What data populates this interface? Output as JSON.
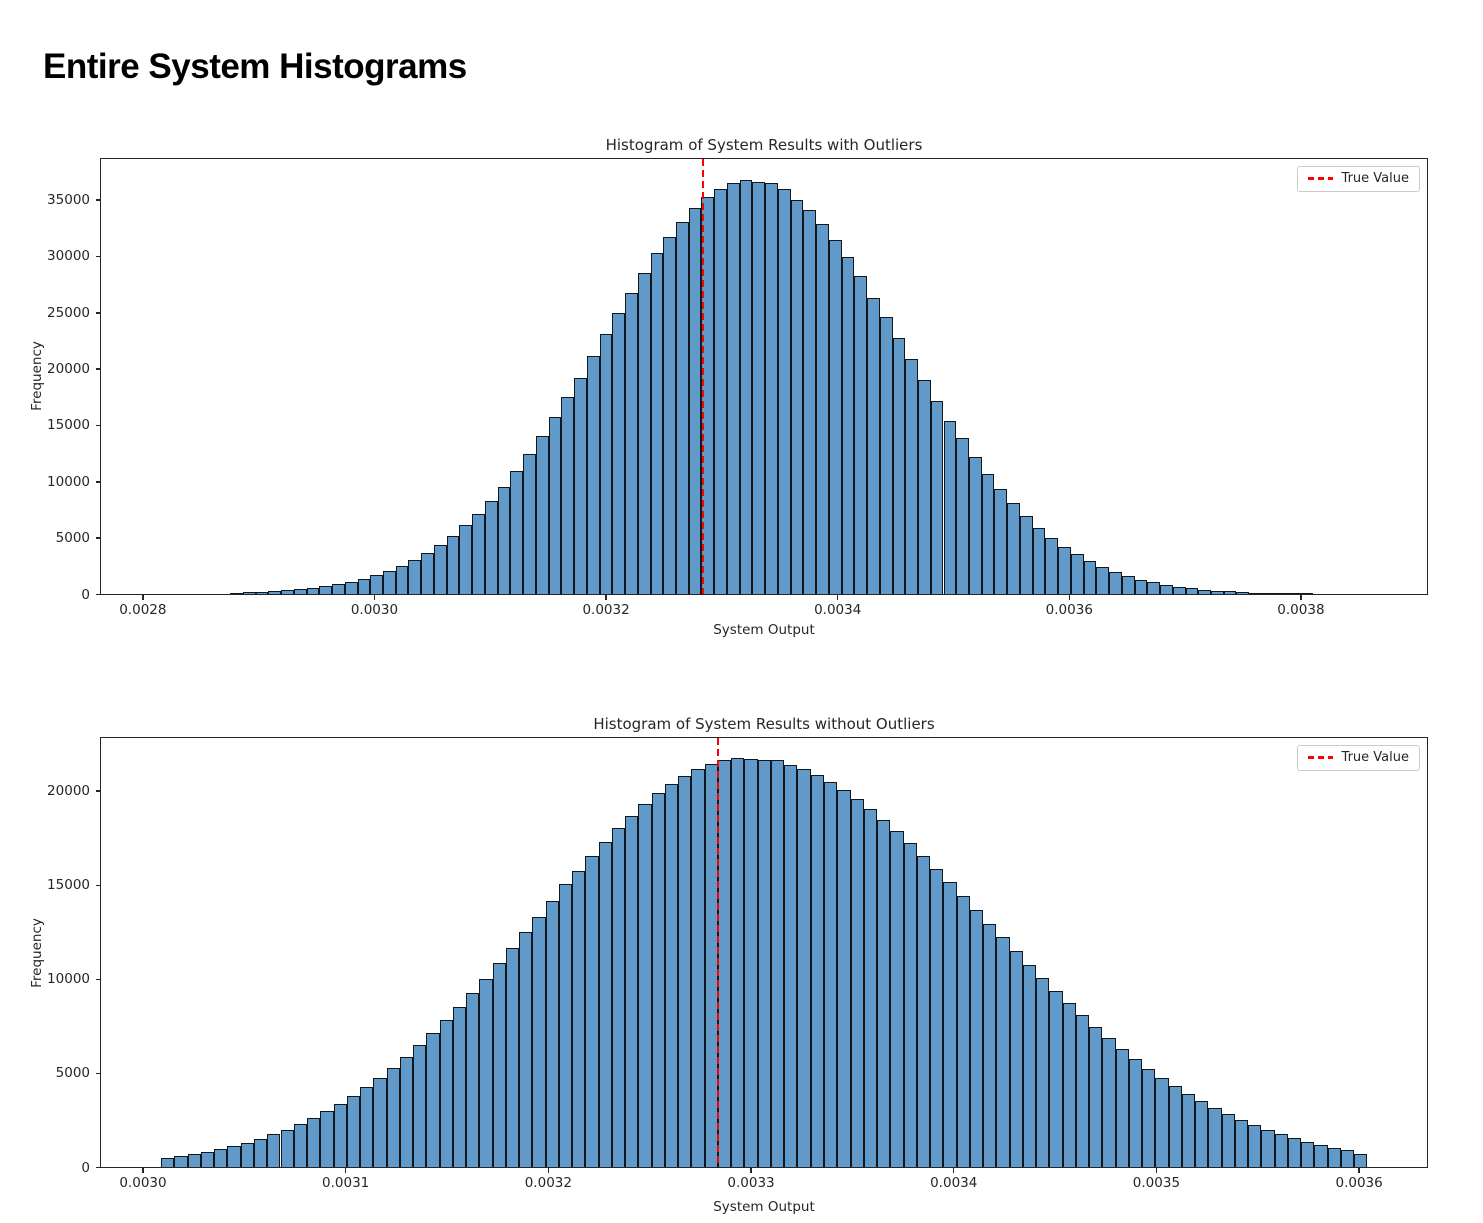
{
  "page_title": "Entire System Histograms",
  "chart_data": [
    {
      "type": "histogram",
      "title": "Histogram of System Results with Outliers",
      "xlabel": "System Output",
      "ylabel": "Frequency",
      "legend_label": "True Value",
      "legend_position": "upper right",
      "grid": false,
      "true_value": 0.003283,
      "xlim": [
        0.002763,
        0.003908
      ],
      "ylim": [
        0,
        38600
      ],
      "xticks": [
        0.0028,
        0.003,
        0.0032,
        0.0034,
        0.0036,
        0.0038
      ],
      "xtick_labels": [
        "0.0028",
        "0.0030",
        "0.0032",
        "0.0034",
        "0.0036",
        "0.0038"
      ],
      "yticks": [
        0,
        5000,
        10000,
        15000,
        20000,
        25000,
        30000,
        35000
      ],
      "ytick_labels": [
        "0",
        "5000",
        "10000",
        "15000",
        "20000",
        "25000",
        "30000",
        "35000"
      ],
      "bin_start": 0.0028745,
      "bin_width": 1.1e-05,
      "frequencies": [
        105,
        139,
        184,
        242,
        316,
        412,
        529,
        674,
        855,
        1074,
        1340,
        1661,
        2040,
        2493,
        3017,
        3637,
        4353,
        5160,
        6085,
        7105,
        8265,
        9531,
        10918,
        12401,
        14008,
        15686,
        17458,
        19180,
        21150,
        23029,
        24897,
        26729,
        28498,
        30300,
        31683,
        33041,
        34234,
        35210,
        35944,
        36440,
        36700,
        36520,
        36450,
        35900,
        34950,
        34035,
        32813,
        31407,
        29862,
        28182,
        26250,
        24567,
        22684,
        20813,
        18948,
        17128,
        15374,
        13800,
        12118,
        10650,
        9290,
        8049,
        6918,
        5901,
        5005,
        4210,
        3521,
        2919,
        2403,
        1968,
        1596,
        1288,
        1031,
        819,
        646,
        506,
        393,
        304,
        234,
        178,
        134,
        100,
        75,
        55,
        41
      ],
      "colors": {
        "bar_fill": "#619ac8",
        "bar_edge": "#10181f",
        "true_line": "#ff0000"
      }
    },
    {
      "type": "histogram",
      "title": "Histogram of System Results without Outliers",
      "xlabel": "System Output",
      "ylabel": "Frequency",
      "legend_label": "True Value",
      "legend_position": "upper right",
      "grid": false,
      "true_value": 0.003283,
      "xlim": [
        0.0029788,
        0.003633
      ],
      "ylim": [
        0,
        22800
      ],
      "xticks": [
        0.003,
        0.0031,
        0.0032,
        0.0033,
        0.0034,
        0.0035,
        0.0036
      ],
      "xtick_labels": [
        "0.0030",
        "0.0031",
        "0.0032",
        "0.0033",
        "0.0034",
        "0.0035",
        "0.0036"
      ],
      "yticks": [
        0,
        5000,
        10000,
        15000,
        20000
      ],
      "ytick_labels": [
        "0",
        "5000",
        "10000",
        "15000",
        "20000"
      ],
      "bin_start": 0.0030085,
      "bin_width": 6.54e-06,
      "frequencies": [
        480,
        585,
        689,
        813,
        952,
        1115,
        1294,
        1496,
        1733,
        1991,
        2283,
        2602,
        2954,
        3346,
        3768,
        4235,
        4733,
        5270,
        5848,
        6463,
        7116,
        7800,
        8513,
        9268,
        9980,
        10837,
        11646,
        12464,
        13298,
        14122,
        15020,
        15751,
        16533,
        17288,
        18000,
        18679,
        19294,
        19855,
        20357,
        20783,
        21140,
        21414,
        21650,
        21740,
        21700,
        21620,
        21630,
        21340,
        21140,
        20830,
        20457,
        20034,
        19559,
        19029,
        18461,
        17857,
        17207,
        16542,
        15851,
        15133,
        14412,
        13681,
        12937,
        12207,
        11481,
        10757,
        10055,
        9372,
        8696,
        8053,
        7435,
        6835,
        6272,
        5737,
        5222,
        4748,
        4302,
        3881,
        3496,
        3139,
        2804,
        2502,
        2226,
        1970,
        1741,
        1535,
        1346,
        1178,
        1028,
        893,
        700
      ],
      "colors": {
        "bar_fill": "#619ac8",
        "bar_edge": "#10181f",
        "true_line": "#ff0000"
      }
    }
  ]
}
